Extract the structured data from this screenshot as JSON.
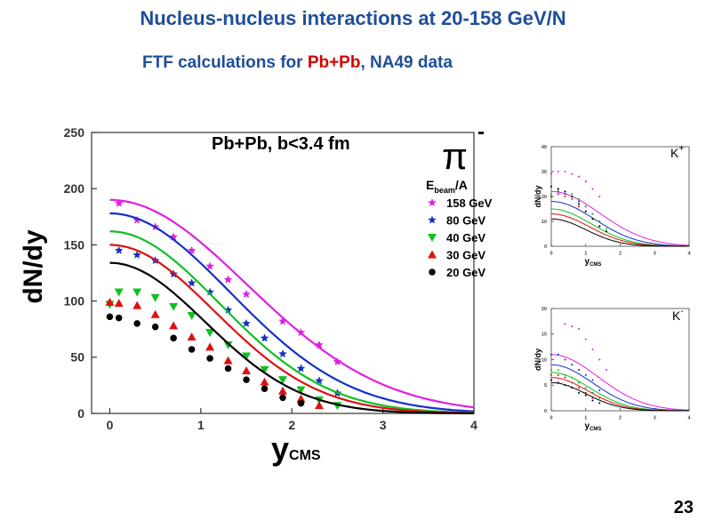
{
  "slide": {
    "title": "Nucleus-nucleus interactions at 20-158 GeV/N",
    "subtitle_prefix": "FTF calculations for ",
    "subtitle_highlight": "Pb+Pb",
    "subtitle_suffix": ", NA49 data",
    "page_number": "23",
    "highlight_color": "#d40000",
    "title_color": "#1f4e9a"
  },
  "chart_data": [
    {
      "type": "scatter",
      "title": "Pb+Pb, b<3.4 fm",
      "particle_label": "π",
      "particle_charge": "-",
      "xlabel_main": "y",
      "xlabel_sub": "CMS",
      "ylabel": "dN/dy",
      "xlim": [
        -0.2,
        4
      ],
      "ylim": [
        0,
        250
      ],
      "xticks": [
        "0",
        "1",
        "2",
        "3",
        "4"
      ],
      "yticks": [
        "0",
        "50",
        "100",
        "150",
        "200",
        "250"
      ],
      "legend_header_main": "E",
      "legend_header_sub": "beam",
      "legend_header_suffix": "/A",
      "legend_position": "right",
      "series": [
        {
          "name": "158 GeV",
          "color": "#e020e0",
          "marker": "star",
          "model_peak": 190,
          "model_width": 1.5,
          "points": [
            [
              0.1,
              187
            ],
            [
              0.3,
              172
            ],
            [
              0.5,
              166
            ],
            [
              0.7,
              157
            ],
            [
              0.9,
              145
            ],
            [
              1.1,
              131
            ],
            [
              1.3,
              119
            ],
            [
              1.5,
              106
            ],
            [
              1.9,
              82
            ],
            [
              2.1,
              72
            ],
            [
              2.3,
              61
            ],
            [
              2.5,
              46
            ]
          ]
        },
        {
          "name": "80 GeV",
          "color": "#1530c8",
          "marker": "star",
          "model_peak": 178,
          "model_width": 1.32,
          "points": [
            [
              0.1,
              145
            ],
            [
              0.3,
              141
            ],
            [
              0.5,
              136
            ],
            [
              0.7,
              124
            ],
            [
              0.9,
              116
            ],
            [
              1.1,
              108
            ],
            [
              1.3,
              92
            ],
            [
              1.5,
              80
            ],
            [
              1.7,
              67
            ],
            [
              1.9,
              53
            ],
            [
              2.1,
              40
            ],
            [
              2.3,
              29
            ],
            [
              2.5,
              18
            ]
          ]
        },
        {
          "name": "40 GeV",
          "color": "#10c020",
          "marker": "triangle-down",
          "model_peak": 162,
          "model_width": 1.2,
          "points": [
            [
              0,
              97
            ],
            [
              0.1,
              108
            ],
            [
              0.3,
              108
            ],
            [
              0.5,
              103
            ],
            [
              0.7,
              95
            ],
            [
              0.9,
              87
            ],
            [
              1.1,
              72
            ],
            [
              1.3,
              61
            ],
            [
              1.5,
              51
            ],
            [
              1.7,
              39
            ],
            [
              1.9,
              30
            ],
            [
              2.1,
              21
            ],
            [
              2.3,
              12
            ],
            [
              2.5,
              7
            ]
          ]
        },
        {
          "name": "30 GeV",
          "color": "#e01010",
          "marker": "triangle",
          "model_peak": 150,
          "model_width": 1.15,
          "points": [
            [
              0,
              99
            ],
            [
              0.1,
              98
            ],
            [
              0.3,
              96
            ],
            [
              0.5,
              88
            ],
            [
              0.7,
              78
            ],
            [
              0.9,
              68
            ],
            [
              1.1,
              59
            ],
            [
              1.3,
              47
            ],
            [
              1.5,
              38
            ],
            [
              1.7,
              28
            ],
            [
              1.9,
              20
            ],
            [
              2.1,
              13
            ],
            [
              2.3,
              7
            ]
          ]
        },
        {
          "name": "20 GeV",
          "color": "#000000",
          "marker": "dot",
          "model_peak": 134,
          "model_width": 1.05,
          "points": [
            [
              0,
              86
            ],
            [
              0.1,
              85
            ],
            [
              0.3,
              80
            ],
            [
              0.5,
              77
            ],
            [
              0.7,
              67
            ],
            [
              0.9,
              57
            ],
            [
              1.1,
              49
            ],
            [
              1.3,
              40
            ],
            [
              1.5,
              30
            ],
            [
              1.7,
              22
            ],
            [
              1.9,
              14
            ],
            [
              2.1,
              9
            ]
          ]
        }
      ]
    },
    {
      "type": "scatter",
      "particle_label": "K",
      "particle_charge": "+",
      "ylabel": "dN/dy",
      "xlabel_main": "y",
      "xlabel_sub": "CMS",
      "xlim": [
        0,
        4
      ],
      "ylim": [
        0,
        40
      ],
      "xticks": [
        "0",
        "1",
        "2",
        "3",
        "4"
      ],
      "yticks": [
        "0",
        "10",
        "20",
        "30",
        "40"
      ],
      "series": [
        {
          "name": "158 GeV",
          "color": "#e020e0",
          "model_peak": 22,
          "model_width": 1.4,
          "points": [
            [
              0,
              29
            ],
            [
              0.2,
              30
            ],
            [
              0.4,
              30
            ],
            [
              0.6,
              29
            ],
            [
              0.8,
              28
            ],
            [
              1.0,
              26
            ],
            [
              1.2,
              23
            ],
            [
              1.4,
              20
            ]
          ]
        },
        {
          "name": "80 GeV",
          "color": "#1530c8",
          "model_peak": 18,
          "model_width": 1.25,
          "points": [
            [
              0,
              20
            ],
            [
              0.2,
              22
            ],
            [
              0.4,
              21
            ],
            [
              0.6,
              20
            ],
            [
              0.8,
              18
            ],
            [
              1.0,
              16
            ],
            [
              1.2,
              13
            ],
            [
              1.4,
              10
            ]
          ]
        },
        {
          "name": "40 GeV",
          "color": "#10c020",
          "model_peak": 15,
          "model_width": 1.15,
          "points": [
            [
              0,
              21
            ],
            [
              0.2,
              23
            ],
            [
              0.4,
              22
            ],
            [
              0.6,
              21
            ],
            [
              0.8,
              19
            ],
            [
              1.0,
              16
            ],
            [
              1.2,
              13
            ],
            [
              1.4,
              10
            ],
            [
              1.6,
              7
            ]
          ]
        },
        {
          "name": "30 GeV",
          "color": "#e01010",
          "model_peak": 13,
          "model_width": 1.1,
          "points": [
            [
              0,
              20
            ],
            [
              0.2,
              21
            ],
            [
              0.4,
              20
            ],
            [
              0.6,
              19
            ],
            [
              0.8,
              16
            ],
            [
              1.0,
              14
            ],
            [
              1.2,
              11
            ],
            [
              1.4,
              8
            ]
          ]
        },
        {
          "name": "20 GeV",
          "color": "#000000",
          "model_peak": 11,
          "model_width": 1.0,
          "points": [
            [
              0,
              24
            ],
            [
              0.2,
              23
            ],
            [
              0.4,
              22
            ],
            [
              0.6,
              20
            ],
            [
              0.8,
              17
            ],
            [
              1.0,
              14
            ],
            [
              1.2,
              11
            ],
            [
              1.4,
              8
            ],
            [
              1.6,
              6
            ]
          ]
        }
      ]
    },
    {
      "type": "scatter",
      "particle_label": "K",
      "particle_charge": "-",
      "ylabel": "dN/dy",
      "xlabel_main": "y",
      "xlabel_sub": "CMS",
      "xlim": [
        0,
        4
      ],
      "ylim": [
        0,
        20
      ],
      "xticks": [
        "0",
        "1",
        "2",
        "3",
        "4"
      ],
      "yticks": [
        "0",
        "5",
        "10",
        "15",
        "20"
      ],
      "series": [
        {
          "name": "158 GeV",
          "color": "#e020e0",
          "model_peak": 11,
          "model_width": 1.35,
          "points": [
            [
              0.4,
              17
            ],
            [
              0.6,
              16.5
            ],
            [
              0.8,
              16
            ],
            [
              1.0,
              14
            ],
            [
              1.2,
              12
            ],
            [
              1.4,
              10
            ],
            [
              1.6,
              8
            ]
          ]
        },
        {
          "name": "80 GeV",
          "color": "#1530c8",
          "model_peak": 9,
          "model_width": 1.2,
          "points": [
            [
              0,
              11
            ],
            [
              0.2,
              11
            ],
            [
              0.4,
              10
            ],
            [
              0.6,
              9
            ],
            [
              0.8,
              8
            ],
            [
              1.0,
              7
            ],
            [
              1.2,
              6
            ],
            [
              1.4,
              4
            ]
          ]
        },
        {
          "name": "40 GeV",
          "color": "#10c020",
          "model_peak": 7.5,
          "model_width": 1.1,
          "points": [
            [
              0,
              8
            ],
            [
              0.2,
              8
            ],
            [
              0.4,
              7
            ],
            [
              0.6,
              6.5
            ],
            [
              0.8,
              5.5
            ],
            [
              1.0,
              4.5
            ],
            [
              1.2,
              3.5
            ],
            [
              1.4,
              2.5
            ]
          ]
        },
        {
          "name": "30 GeV",
          "color": "#e01010",
          "model_peak": 6.5,
          "model_width": 1.05,
          "points": [
            [
              0,
              7
            ],
            [
              0.2,
              7
            ],
            [
              0.4,
              6.5
            ],
            [
              0.6,
              5.5
            ],
            [
              0.8,
              4.5
            ],
            [
              1.0,
              3.5
            ],
            [
              1.2,
              2.5
            ]
          ]
        },
        {
          "name": "20 GeV",
          "color": "#000000",
          "model_peak": 5.5,
          "model_width": 1.0,
          "points": [
            [
              0,
              6
            ],
            [
              0.2,
              5.5
            ],
            [
              0.4,
              5
            ],
            [
              0.6,
              4.5
            ],
            [
              0.8,
              3.5
            ],
            [
              1.0,
              3
            ],
            [
              1.2,
              2
            ],
            [
              1.4,
              1.5
            ]
          ]
        }
      ]
    }
  ]
}
